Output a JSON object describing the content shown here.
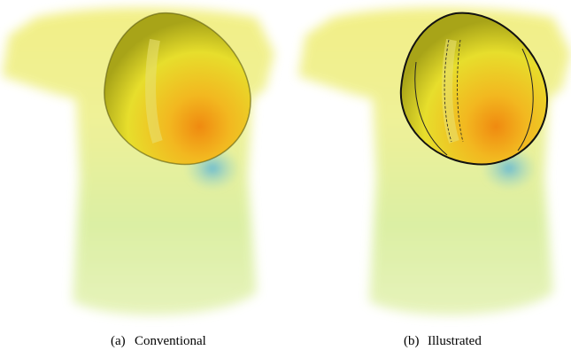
{
  "figure": {
    "subfigures": [
      {
        "label": "(a)",
        "caption": "Conventional"
      },
      {
        "label": "(b)",
        "caption": "Illustrated"
      }
    ]
  }
}
